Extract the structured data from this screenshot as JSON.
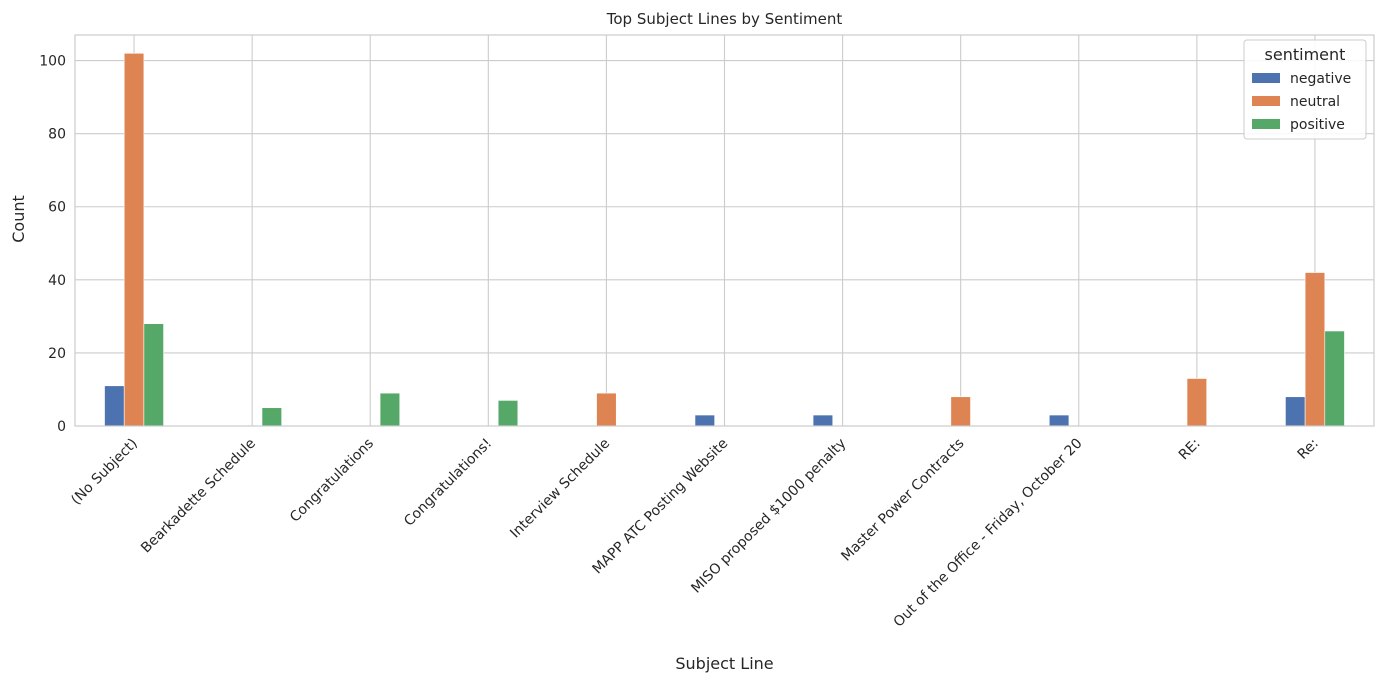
{
  "chart_data": {
    "type": "bar",
    "title": "Top Subject Lines by Sentiment",
    "xlabel": "Subject Line",
    "ylabel": "Count",
    "ylim": [
      0,
      107
    ],
    "yticks": [
      0,
      20,
      40,
      60,
      80,
      100
    ],
    "grid": true,
    "legend_title": "sentiment",
    "legend_position": "top-right",
    "categories": [
      "(No Subject)",
      "Bearkadette Schedule",
      "Congratulations",
      "Congratulations!",
      "Interview Schedule",
      "MAPP ATC Posting Website",
      "MISO proposed $1000 penalty",
      "Master Power Contracts",
      "Out of the Office - Friday, October 20",
      "RE:",
      "Re:"
    ],
    "series": [
      {
        "name": "negative",
        "color": "#4c72b0",
        "values": [
          11,
          0,
          0,
          0,
          0,
          3,
          3,
          0,
          3,
          0,
          8
        ]
      },
      {
        "name": "neutral",
        "color": "#dd8452",
        "values": [
          102,
          0,
          0,
          0,
          9,
          0,
          0,
          8,
          0,
          13,
          42
        ]
      },
      {
        "name": "positive",
        "color": "#55a868",
        "values": [
          28,
          5,
          9,
          7,
          0,
          0,
          0,
          0,
          0,
          0,
          26
        ]
      }
    ]
  }
}
